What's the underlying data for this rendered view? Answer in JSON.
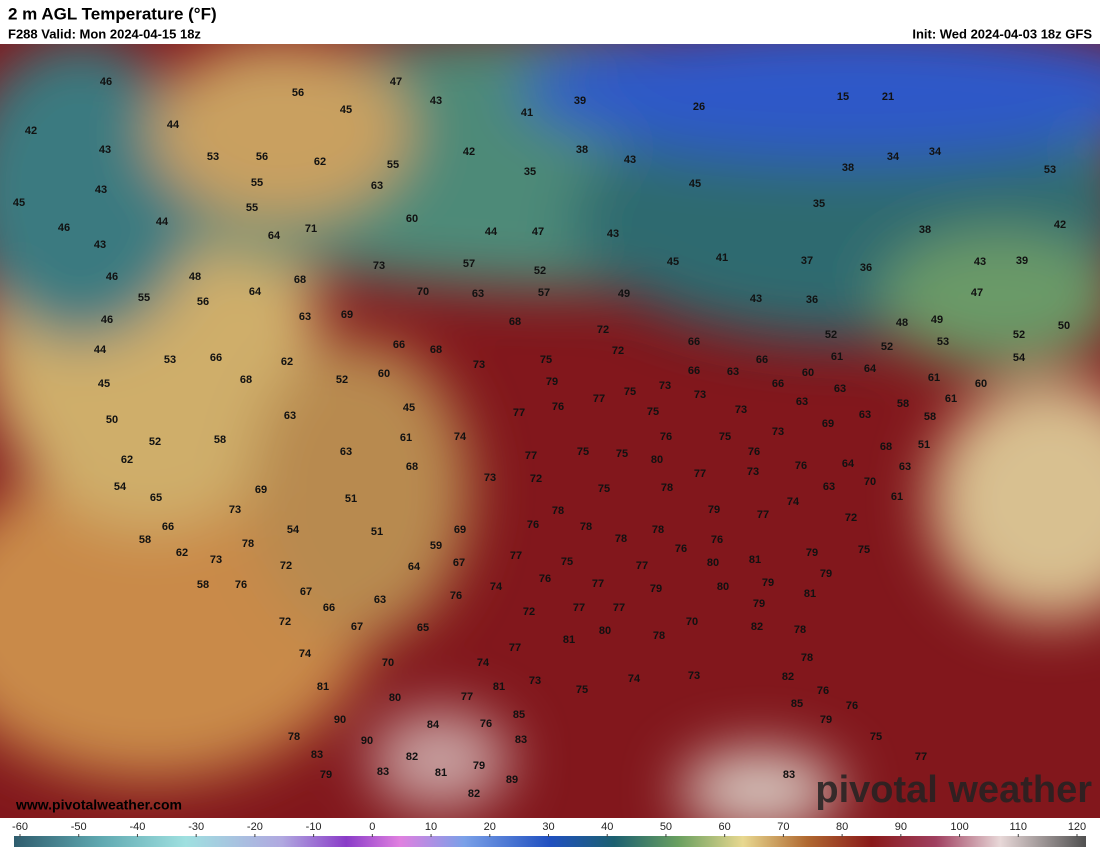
{
  "header": {
    "title": "2 m AGL Temperature (°F)",
    "valid": "F288 Valid: Mon 2024-04-15 18z",
    "init": "Init: Wed 2024-04-03 18z GFS"
  },
  "map": {
    "labels": [
      46,
      56,
      47,
      43,
      45,
      41,
      39,
      26,
      15,
      21,
      42,
      44,
      43,
      53,
      56,
      62,
      55,
      42,
      38,
      43,
      34,
      34,
      53,
      43,
      55,
      63,
      35,
      45,
      38,
      35,
      45,
      55,
      44,
      60,
      64,
      71,
      46,
      43,
      44,
      47,
      43,
      38,
      42,
      46,
      48,
      68,
      73,
      57,
      52,
      45,
      41,
      37,
      36,
      43,
      39,
      55,
      56,
      64,
      70,
      63,
      57,
      49,
      43,
      36,
      47,
      46,
      63,
      69,
      68,
      72,
      48,
      49,
      52,
      50,
      44,
      53,
      66,
      62,
      66,
      68,
      73,
      75,
      72,
      66,
      52,
      52,
      53,
      54,
      45,
      68,
      52,
      60,
      79,
      75,
      73,
      66,
      63,
      66,
      66,
      60,
      61,
      64,
      61,
      60,
      50,
      63,
      45,
      77,
      76,
      77,
      75,
      73,
      73,
      63,
      63,
      63,
      58,
      58,
      61,
      52,
      58,
      61,
      74,
      75,
      75,
      76,
      75,
      73,
      69,
      68,
      51,
      62,
      63,
      68,
      77,
      80,
      76,
      76,
      64,
      63,
      54,
      65,
      69,
      51,
      73,
      72,
      75,
      77,
      73,
      78,
      63,
      70,
      61,
      73,
      54,
      51,
      69,
      78,
      79,
      77,
      74,
      72,
      66,
      58,
      78,
      59,
      76,
      78,
      78,
      76,
      76,
      81,
      79,
      75,
      62,
      73,
      72,
      64,
      67,
      77,
      75,
      78,
      77,
      80,
      79,
      58,
      76,
      67,
      63,
      76,
      74,
      76,
      77,
      79,
      80,
      79,
      81,
      66,
      72,
      67,
      65,
      72,
      77,
      77,
      79,
      74,
      70,
      81,
      80,
      78,
      70,
      82,
      78,
      77,
      74,
      78,
      81,
      80,
      77,
      81,
      73,
      75,
      74,
      73,
      82,
      76,
      90,
      84,
      76,
      85,
      85,
      79,
      76,
      78,
      90,
      83,
      75,
      83,
      82,
      79,
      77,
      79,
      83,
      81,
      89,
      83,
      82
    ]
  },
  "footer": {
    "site": "www.pivotalweather.com",
    "logo": "pivotal weather"
  },
  "colorbar": {
    "ticks": [
      -60,
      -50,
      -40,
      -30,
      -20,
      -10,
      0,
      10,
      20,
      30,
      40,
      50,
      60,
      70,
      80,
      90,
      100,
      110,
      120
    ]
  }
}
